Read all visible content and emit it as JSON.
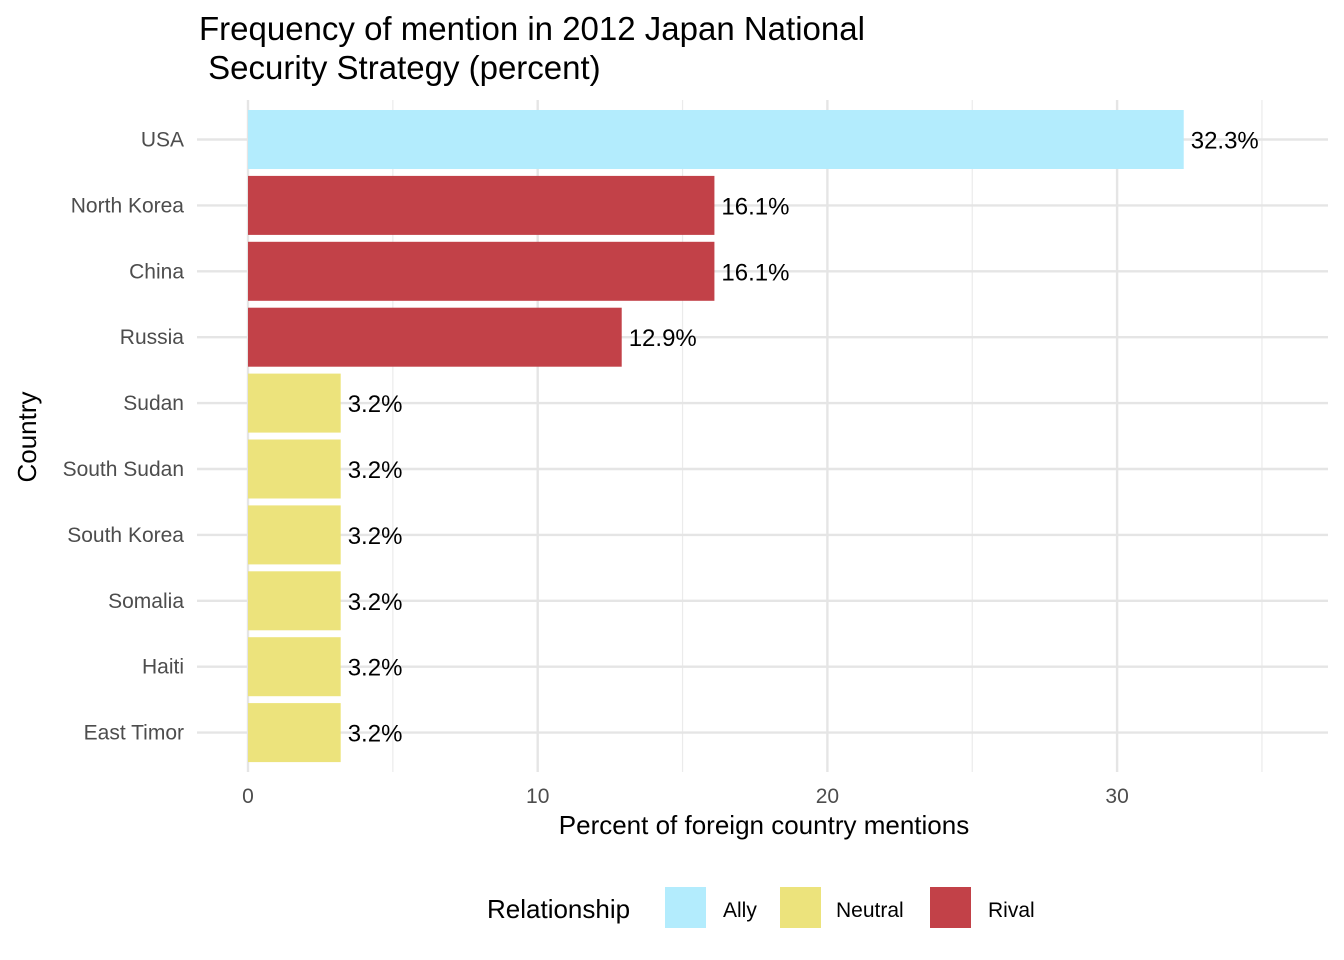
{
  "chart_data": {
    "type": "bar",
    "orientation": "horizontal",
    "title_lines": [
      "Frequency of mention in 2012 Japan National",
      " Security Strategy (percent)"
    ],
    "xlabel": "Percent of foreign country mentions",
    "ylabel": "Country",
    "xlim": [
      0,
      35
    ],
    "x_ticks": [
      0,
      10,
      20,
      30
    ],
    "grid": true,
    "legend_position": "bottom",
    "categories": [
      "USA",
      "North Korea",
      "China",
      "Russia",
      "Sudan",
      "South Sudan",
      "South Korea",
      "Somalia",
      "Haiti",
      "East Timor"
    ],
    "values": [
      32.3,
      16.1,
      16.1,
      12.9,
      3.2,
      3.2,
      3.2,
      3.2,
      3.2,
      3.2
    ],
    "value_labels": [
      "32.3%",
      "16.1%",
      "16.1%",
      "12.9%",
      "3.2%",
      "3.2%",
      "3.2%",
      "3.2%",
      "3.2%",
      "3.2%"
    ],
    "groups": [
      "Ally",
      "Rival",
      "Rival",
      "Rival",
      "Neutral",
      "Neutral",
      "Neutral",
      "Neutral",
      "Neutral",
      "Neutral"
    ],
    "legend": {
      "title": "Relationship",
      "items": [
        {
          "name": "Ally",
          "color": "#b3ecfd"
        },
        {
          "name": "Neutral",
          "color": "#ece37c"
        },
        {
          "name": "Rival",
          "color": "#c24148"
        }
      ]
    }
  }
}
